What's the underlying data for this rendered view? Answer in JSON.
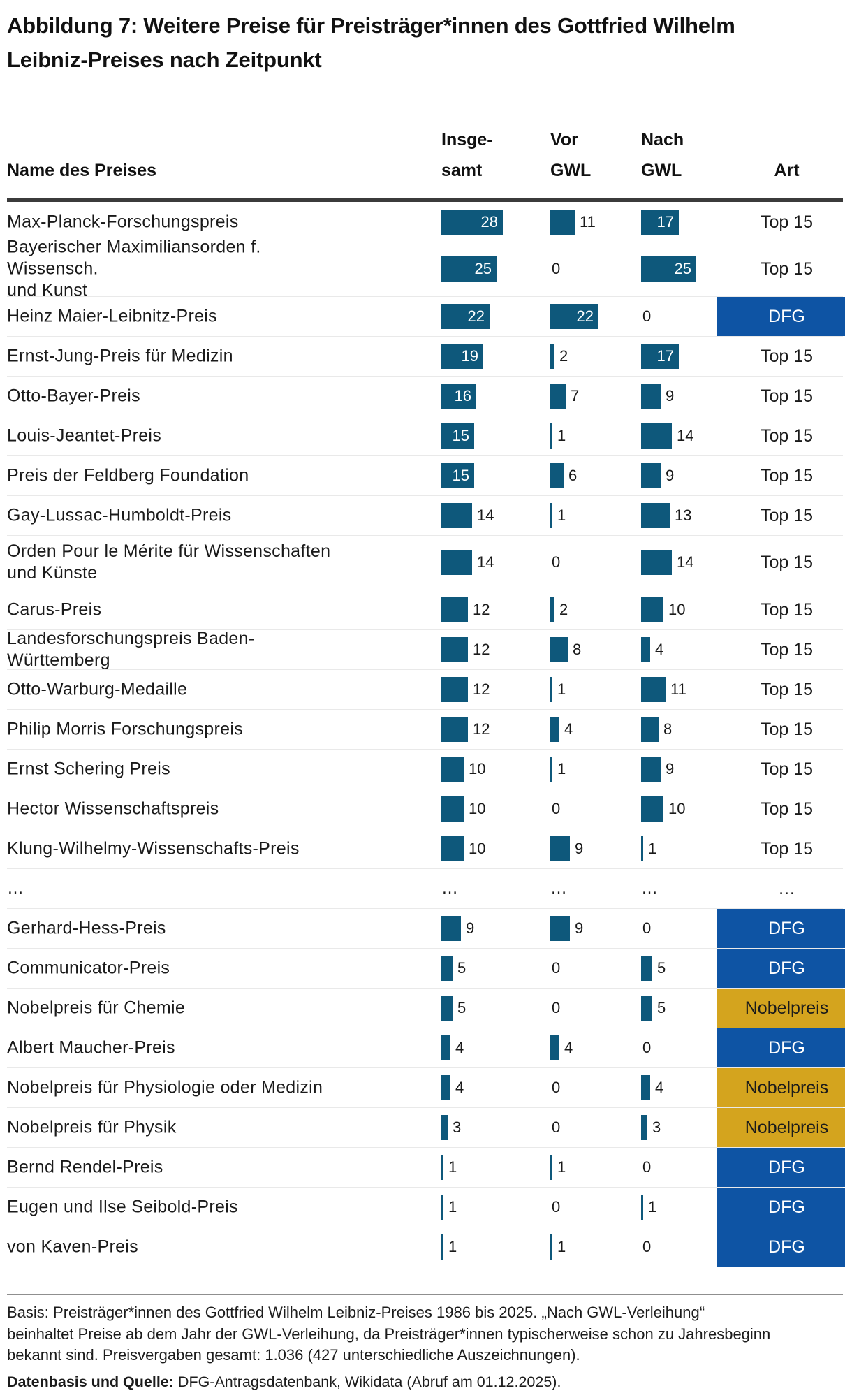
{
  "title": "Abbildung 7: Weitere Preise für Preisträger*innen des Gottfried Wilhelm\nLeibniz-Preises nach Zeitpunkt",
  "header": {
    "name_label": "Name des Preises",
    "total_line1": "Insge-",
    "total_line2": "samt",
    "vor_line1": "Vor",
    "vor_line2": "GWL",
    "nach_line1": "Nach",
    "nach_line2": "GWL",
    "art_label": "Art"
  },
  "colors": {
    "bar": "#0e587b",
    "dfg_bg": "#0e54a4",
    "dfg_text": "#ffffff",
    "nobel_bg": "#d4a41e",
    "nobel_text": "#1b1b1b",
    "text": "#1a1a1a",
    "header_rule": "#3b3b3b",
    "row_divider": "#e9e9e9"
  },
  "ellipsis_char": "…",
  "chart_data": {
    "type": "bar",
    "orientation": "horizontal",
    "title": "Abbildung 7: Weitere Preise für Preisträger*innen des Gottfried Wilhelm Leibniz-Preises nach Zeitpunkt",
    "columns": [
      "Insgesamt",
      "Vor GWL",
      "Nach GWL"
    ],
    "value_label_inside_min": 15,
    "xmax": 28,
    "rows": [
      {
        "name": "Max-Planck-Forschungspreis",
        "insgesamt": 28,
        "vor_gwl": 11,
        "nach_gwl": 17,
        "art": "Top 15"
      },
      {
        "name": "Bayerischer Maximiliansorden f. Wissensch.\nund Kunst",
        "insgesamt": 25,
        "vor_gwl": 0,
        "nach_gwl": 25,
        "art": "Top 15",
        "two_line": true
      },
      {
        "name": "Heinz Maier-Leibnitz-Preis",
        "insgesamt": 22,
        "vor_gwl": 22,
        "nach_gwl": 0,
        "art": "DFG"
      },
      {
        "name": "Ernst-Jung-Preis für Medizin",
        "insgesamt": 19,
        "vor_gwl": 2,
        "nach_gwl": 17,
        "art": "Top 15"
      },
      {
        "name": "Otto-Bayer-Preis",
        "insgesamt": 16,
        "vor_gwl": 7,
        "nach_gwl": 9,
        "art": "Top 15"
      },
      {
        "name": "Louis-Jeantet-Preis",
        "insgesamt": 15,
        "vor_gwl": 1,
        "nach_gwl": 14,
        "art": "Top 15"
      },
      {
        "name": "Preis der Feldberg Foundation",
        "insgesamt": 15,
        "vor_gwl": 6,
        "nach_gwl": 9,
        "art": "Top 15"
      },
      {
        "name": "Gay-Lussac-Humboldt-Preis",
        "insgesamt": 14,
        "vor_gwl": 1,
        "nach_gwl": 13,
        "art": "Top 15"
      },
      {
        "name": "Orden Pour le Mérite für Wissenschaften\nund Künste",
        "insgesamt": 14,
        "vor_gwl": 0,
        "nach_gwl": 14,
        "art": "Top 15",
        "two_line": true
      },
      {
        "name": "Carus-Preis",
        "insgesamt": 12,
        "vor_gwl": 2,
        "nach_gwl": 10,
        "art": "Top 15"
      },
      {
        "name": "Landesforschungspreis Baden-Württemberg",
        "insgesamt": 12,
        "vor_gwl": 8,
        "nach_gwl": 4,
        "art": "Top 15"
      },
      {
        "name": "Otto-Warburg-Medaille",
        "insgesamt": 12,
        "vor_gwl": 1,
        "nach_gwl": 11,
        "art": "Top 15"
      },
      {
        "name": "Philip Morris Forschungspreis",
        "insgesamt": 12,
        "vor_gwl": 4,
        "nach_gwl": 8,
        "art": "Top 15"
      },
      {
        "name": "Ernst Schering Preis",
        "insgesamt": 10,
        "vor_gwl": 1,
        "nach_gwl": 9,
        "art": "Top 15"
      },
      {
        "name": "Hector Wissenschaftspreis",
        "insgesamt": 10,
        "vor_gwl": 0,
        "nach_gwl": 10,
        "art": "Top 15"
      },
      {
        "name": "Klung-Wilhelmy-Wissenschafts-Preis",
        "insgesamt": 10,
        "vor_gwl": 9,
        "nach_gwl": 1,
        "art": "Top 15"
      },
      {
        "type": "ellipsis"
      },
      {
        "name": "Gerhard-Hess-Preis",
        "insgesamt": 9,
        "vor_gwl": 9,
        "nach_gwl": 0,
        "art": "DFG"
      },
      {
        "name": "Communicator-Preis",
        "insgesamt": 5,
        "vor_gwl": 0,
        "nach_gwl": 5,
        "art": "DFG"
      },
      {
        "name": "Nobelpreis für Chemie",
        "insgesamt": 5,
        "vor_gwl": 0,
        "nach_gwl": 5,
        "art": "Nobelpreis"
      },
      {
        "name": "Albert Maucher-Preis",
        "insgesamt": 4,
        "vor_gwl": 4,
        "nach_gwl": 0,
        "art": "DFG"
      },
      {
        "name": "Nobelpreis für Physiologie oder Medizin",
        "insgesamt": 4,
        "vor_gwl": 0,
        "nach_gwl": 4,
        "art": "Nobelpreis"
      },
      {
        "name": "Nobelpreis für Physik",
        "insgesamt": 3,
        "vor_gwl": 0,
        "nach_gwl": 3,
        "art": "Nobelpreis"
      },
      {
        "name": "Bernd Rendel-Preis",
        "insgesamt": 1,
        "vor_gwl": 1,
        "nach_gwl": 0,
        "art": "DFG"
      },
      {
        "name": "Eugen und Ilse Seibold-Preis",
        "insgesamt": 1,
        "vor_gwl": 0,
        "nach_gwl": 1,
        "art": "DFG"
      },
      {
        "name": "von Kaven-Preis",
        "insgesamt": 1,
        "vor_gwl": 1,
        "nach_gwl": 0,
        "art": "DFG"
      }
    ]
  },
  "footer": {
    "basis": "Basis: Preisträger*innen des Gottfried Wilhelm Leibniz-Preises 1986 bis 2025. „Nach GWL-Verleihung“\nbeinhaltet Preise ab dem Jahr der GWL-Verleihung, da Preisträger*innen typischerweise schon zu Jahresbeginn\nbekannt sind. Preisvergaben gesamt: 1.036 (427 unterschiedliche Auszeichnungen).",
    "source_label": "Datenbasis und Quelle:",
    "source_text": " DFG-Antragsdatenbank, Wikidata (Abruf am 01.12.2025)."
  }
}
